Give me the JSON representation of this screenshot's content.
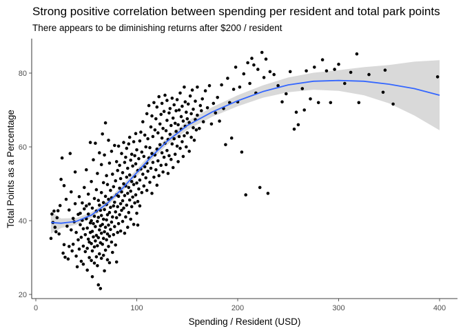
{
  "chart_data": {
    "type": "scatter",
    "title": "Strong positive correlation between spending per resident and total park points",
    "subtitle": "There appears to be diminishing returns after $200 / resident",
    "xlabel": "Spending / Resident (USD)",
    "ylabel": "Total Points as a Percentage",
    "xlim": [
      0,
      415
    ],
    "ylim": [
      19,
      89
    ],
    "x_ticks": [
      0,
      100,
      200,
      300,
      400
    ],
    "y_ticks": [
      20,
      40,
      60,
      80
    ],
    "grid": false,
    "point_color": "#000000",
    "smooth": {
      "method": "loess",
      "color": "#3366FF",
      "band_color": "#d9d9d9",
      "x": [
        15,
        25,
        40,
        55,
        70,
        85,
        100,
        115,
        130,
        150,
        175,
        200,
        225,
        250,
        275,
        300,
        325,
        350,
        375,
        400
      ],
      "y": [
        39.5,
        39.3,
        39.8,
        41.5,
        44.5,
        48.5,
        53.0,
        57.5,
        61.5,
        65.8,
        69.5,
        72.5,
        75.0,
        76.8,
        77.8,
        78.0,
        77.8,
        77.0,
        75.8,
        74.0
      ],
      "lower": [
        36.5,
        38.0,
        38.9,
        40.7,
        43.7,
        47.6,
        52.0,
        56.5,
        60.5,
        64.6,
        68.2,
        71.0,
        73.3,
        74.8,
        75.5,
        75.2,
        74.0,
        71.8,
        68.5,
        64.5
      ],
      "upper": [
        42.5,
        40.6,
        40.7,
        42.3,
        45.3,
        49.4,
        54.0,
        58.5,
        62.5,
        67.0,
        70.8,
        74.0,
        76.7,
        78.8,
        80.1,
        80.8,
        81.6,
        82.2,
        83.1,
        83.5
      ]
    },
    "points": [
      [
        15,
        35.2
      ],
      [
        16,
        41.8
      ],
      [
        17,
        39.5
      ],
      [
        18,
        42.6
      ],
      [
        19,
        38.2
      ],
      [
        20,
        37.0
      ],
      [
        21,
        40.8
      ],
      [
        22,
        42.7
      ],
      [
        23,
        36.4
      ],
      [
        24,
        44.1
      ],
      [
        25,
        51.2
      ],
      [
        26,
        57.0
      ],
      [
        27,
        31.2
      ],
      [
        28,
        33.5
      ],
      [
        28,
        49.5
      ],
      [
        29,
        30.1
      ],
      [
        30,
        45.8
      ],
      [
        31,
        38.5
      ],
      [
        32,
        29.6
      ],
      [
        33,
        33.0
      ],
      [
        33,
        42.9
      ],
      [
        34,
        58.2
      ],
      [
        35,
        37.5
      ],
      [
        35,
        47.8
      ],
      [
        36,
        31.8
      ],
      [
        37,
        33.6
      ],
      [
        37,
        40.6
      ],
      [
        38,
        39.7
      ],
      [
        39,
        44.6
      ],
      [
        39,
        53.2
      ],
      [
        40,
        30.4
      ],
      [
        40,
        36.8
      ],
      [
        41,
        27.5
      ],
      [
        42,
        34.8
      ],
      [
        42,
        41.7
      ],
      [
        43,
        32.3
      ],
      [
        43,
        46.5
      ],
      [
        44,
        38.9
      ],
      [
        44,
        42.0
      ],
      [
        45,
        29.0
      ],
      [
        45,
        35.5
      ],
      [
        46,
        40.1
      ],
      [
        46,
        44.8
      ],
      [
        47,
        28.2
      ],
      [
        47,
        33.1
      ],
      [
        47,
        37.8
      ],
      [
        48,
        43.2
      ],
      [
        48,
        49.0
      ],
      [
        49,
        31.6
      ],
      [
        49,
        36.2
      ],
      [
        50,
        40.5
      ],
      [
        50,
        44.0
      ],
      [
        50,
        53.8
      ],
      [
        51,
        26.6
      ],
      [
        51,
        32.5
      ],
      [
        51,
        38.0
      ],
      [
        52,
        35.0
      ],
      [
        52,
        41.8
      ],
      [
        52,
        47.2
      ],
      [
        53,
        30.0
      ],
      [
        53,
        34.2
      ],
      [
        53,
        44.5
      ],
      [
        54,
        36.8
      ],
      [
        54,
        39.4
      ],
      [
        54,
        61.2
      ],
      [
        55,
        29.2
      ],
      [
        55,
        33.8
      ],
      [
        55,
        40.0
      ],
      [
        55,
        50.6
      ],
      [
        56,
        24.8
      ],
      [
        56,
        31.8
      ],
      [
        56,
        37.1
      ],
      [
        56,
        43.4
      ],
      [
        57,
        35.6
      ],
      [
        57,
        39.2
      ],
      [
        57,
        56.5
      ],
      [
        58,
        28.5
      ],
      [
        58,
        32.9
      ],
      [
        58,
        41.2
      ],
      [
        58,
        46.0
      ],
      [
        59,
        34.5
      ],
      [
        59,
        38.4
      ],
      [
        59,
        61.0
      ],
      [
        60,
        30.2
      ],
      [
        60,
        36.0
      ],
      [
        60,
        42.6
      ],
      [
        60,
        48.4
      ],
      [
        61,
        27.8
      ],
      [
        61,
        33.2
      ],
      [
        61,
        39.8
      ],
      [
        61,
        52.8
      ],
      [
        62,
        22.6
      ],
      [
        62,
        35.4
      ],
      [
        62,
        40.9
      ],
      [
        62,
        45.5
      ],
      [
        63,
        31.0
      ],
      [
        63,
        37.5
      ],
      [
        63,
        44.2
      ],
      [
        63,
        58.4
      ],
      [
        64,
        21.6
      ],
      [
        64,
        34.0
      ],
      [
        64,
        38.6
      ],
      [
        64,
        42.8
      ],
      [
        65,
        29.8
      ],
      [
        65,
        36.6
      ],
      [
        65,
        41.4
      ],
      [
        65,
        47.6
      ],
      [
        65,
        55.2
      ],
      [
        66,
        33.6
      ],
      [
        66,
        39.0
      ],
      [
        66,
        63.5
      ],
      [
        67,
        30.6
      ],
      [
        67,
        35.2
      ],
      [
        67,
        40.4
      ],
      [
        67,
        44.9
      ],
      [
        67,
        50.3
      ],
      [
        68,
        26.4
      ],
      [
        68,
        37.0
      ],
      [
        68,
        43.0
      ],
      [
        68,
        57.8
      ],
      [
        69,
        32.0
      ],
      [
        69,
        38.2
      ],
      [
        69,
        46.6
      ],
      [
        69,
        66.5
      ],
      [
        70,
        34.8
      ],
      [
        70,
        40.2
      ],
      [
        70,
        44.4
      ],
      [
        70,
        52.2
      ],
      [
        71,
        29.4
      ],
      [
        71,
        36.4
      ],
      [
        71,
        41.6
      ],
      [
        71,
        49.8
      ],
      [
        72,
        33.0
      ],
      [
        72,
        38.8
      ],
      [
        72,
        45.8
      ],
      [
        72,
        61.8
      ],
      [
        73,
        28.6
      ],
      [
        73,
        35.8
      ],
      [
        73,
        42.2
      ],
      [
        73,
        55.6
      ],
      [
        74,
        37.6
      ],
      [
        74,
        43.6
      ],
      [
        74,
        48.2
      ],
      [
        75,
        34.2
      ],
      [
        75,
        39.6
      ],
      [
        75,
        46.2
      ],
      [
        75,
        58.8
      ],
      [
        76,
        31.4
      ],
      [
        76,
        41.0
      ],
      [
        76,
        52.6
      ],
      [
        77,
        36.2
      ],
      [
        77,
        44.0
      ],
      [
        77,
        49.2
      ],
      [
        78,
        38.4
      ],
      [
        78,
        45.0
      ],
      [
        78,
        60.4
      ],
      [
        79,
        33.4
      ],
      [
        79,
        42.4
      ],
      [
        79,
        50.8
      ],
      [
        80,
        28.8
      ],
      [
        80,
        40.8
      ],
      [
        80,
        47.0
      ],
      [
        80,
        56.0
      ],
      [
        81,
        36.8
      ],
      [
        81,
        43.8
      ],
      [
        81,
        53.6
      ],
      [
        82,
        39.2
      ],
      [
        82,
        46.6
      ],
      [
        82,
        60.2
      ],
      [
        83,
        41.6
      ],
      [
        83,
        48.8
      ],
      [
        83,
        55.0
      ],
      [
        84,
        37.2
      ],
      [
        84,
        44.6
      ],
      [
        84,
        51.4
      ],
      [
        85,
        42.8
      ],
      [
        85,
        47.8
      ],
      [
        85,
        58.2
      ],
      [
        86,
        39.8
      ],
      [
        86,
        45.4
      ],
      [
        86,
        53.0
      ],
      [
        87,
        43.4
      ],
      [
        87,
        50.0
      ],
      [
        87,
        61.2
      ],
      [
        88,
        36.6
      ],
      [
        88,
        46.8
      ],
      [
        88,
        55.8
      ],
      [
        89,
        41.0
      ],
      [
        89,
        49.4
      ],
      [
        89,
        57.2
      ],
      [
        90,
        44.2
      ],
      [
        90,
        51.8
      ],
      [
        90,
        59.6
      ],
      [
        91,
        38.2
      ],
      [
        91,
        47.4
      ],
      [
        91,
        54.2
      ],
      [
        92,
        42.2
      ],
      [
        92,
        49.0
      ],
      [
        92,
        60.8
      ],
      [
        93,
        45.6
      ],
      [
        93,
        52.4
      ],
      [
        93,
        62.6
      ],
      [
        94,
        40.4
      ],
      [
        94,
        48.0
      ],
      [
        94,
        56.4
      ],
      [
        95,
        43.8
      ],
      [
        95,
        50.6
      ],
      [
        95,
        58.0
      ],
      [
        96,
        46.4
      ],
      [
        96,
        54.8
      ],
      [
        97,
        39.0
      ],
      [
        97,
        49.8
      ],
      [
        97,
        61.4
      ],
      [
        98,
        44.8
      ],
      [
        98,
        52.0
      ],
      [
        98,
        57.6
      ],
      [
        99,
        47.0
      ],
      [
        99,
        55.4
      ],
      [
        99,
        63.6
      ],
      [
        100,
        42.0
      ],
      [
        100,
        50.2
      ],
      [
        100,
        59.2
      ],
      [
        101,
        45.2
      ],
      [
        101,
        53.6
      ],
      [
        101,
        38.8
      ],
      [
        102,
        48.6
      ],
      [
        102,
        56.8
      ],
      [
        103,
        44.0
      ],
      [
        103,
        51.0
      ],
      [
        103,
        61.6
      ],
      [
        104,
        54.0
      ],
      [
        104,
        64.0
      ],
      [
        105,
        47.6
      ],
      [
        105,
        58.6
      ],
      [
        106,
        52.6
      ],
      [
        106,
        66.8
      ],
      [
        107,
        49.4
      ],
      [
        107,
        57.4
      ],
      [
        108,
        54.6
      ],
      [
        108,
        63.2
      ],
      [
        109,
        51.6
      ],
      [
        109,
        60.0
      ],
      [
        110,
        48.2
      ],
      [
        110,
        55.6
      ],
      [
        110,
        69.0
      ],
      [
        111,
        53.4
      ],
      [
        111,
        62.2
      ],
      [
        112,
        57.0
      ],
      [
        112,
        71.2
      ],
      [
        113,
        50.4
      ],
      [
        113,
        59.8
      ],
      [
        114,
        54.2
      ],
      [
        114,
        65.4
      ],
      [
        115,
        47.4
      ],
      [
        115,
        58.2
      ],
      [
        115,
        68.4
      ],
      [
        116,
        55.8
      ],
      [
        116,
        62.8
      ],
      [
        117,
        51.8
      ],
      [
        117,
        72.0
      ],
      [
        118,
        57.8
      ],
      [
        118,
        64.6
      ],
      [
        119,
        53.8
      ],
      [
        119,
        67.6
      ],
      [
        120,
        49.6
      ],
      [
        120,
        59.4
      ],
      [
        120,
        70.8
      ],
      [
        121,
        56.2
      ],
      [
        121,
        63.8
      ],
      [
        122,
        52.2
      ],
      [
        122,
        73.6
      ],
      [
        123,
        60.6
      ],
      [
        123,
        66.2
      ],
      [
        124,
        55.0
      ],
      [
        124,
        68.8
      ],
      [
        125,
        58.4
      ],
      [
        125,
        62.4
      ],
      [
        125,
        71.8
      ],
      [
        126,
        53.2
      ],
      [
        126,
        65.0
      ],
      [
        127,
        57.2
      ],
      [
        127,
        69.6
      ],
      [
        128,
        61.0
      ],
      [
        128,
        74.0
      ],
      [
        129,
        55.2
      ],
      [
        129,
        64.4
      ],
      [
        130,
        59.0
      ],
      [
        130,
        67.2
      ],
      [
        130,
        72.6
      ],
      [
        131,
        52.8
      ],
      [
        131,
        62.0
      ],
      [
        132,
        57.6
      ],
      [
        132,
        69.2
      ],
      [
        133,
        63.4
      ],
      [
        133,
        70.4
      ],
      [
        134,
        56.6
      ],
      [
        134,
        65.8
      ],
      [
        135,
        60.8
      ],
      [
        135,
        73.2
      ],
      [
        136,
        54.4
      ],
      [
        136,
        67.8
      ],
      [
        137,
        62.2
      ],
      [
        137,
        71.4
      ],
      [
        138,
        58.0
      ],
      [
        138,
        66.4
      ],
      [
        139,
        64.2
      ],
      [
        139,
        69.8
      ],
      [
        140,
        60.2
      ],
      [
        140,
        72.8
      ],
      [
        141,
        56.0
      ],
      [
        141,
        66.0
      ],
      [
        142,
        62.8
      ],
      [
        142,
        70.0
      ],
      [
        143,
        59.6
      ],
      [
        143,
        74.6
      ],
      [
        144,
        64.8
      ],
      [
        144,
        68.2
      ],
      [
        145,
        61.4
      ],
      [
        145,
        71.0
      ],
      [
        146,
        57.4
      ],
      [
        146,
        67.0
      ],
      [
        147,
        63.0
      ],
      [
        147,
        76.2
      ],
      [
        148,
        65.6
      ],
      [
        148,
        72.2
      ],
      [
        149,
        60.0
      ],
      [
        149,
        69.4
      ],
      [
        150,
        63.8
      ],
      [
        150,
        67.6
      ],
      [
        151,
        71.6
      ],
      [
        152,
        58.8
      ],
      [
        152,
        66.6
      ],
      [
        153,
        73.8
      ],
      [
        154,
        62.6
      ],
      [
        154,
        69.0
      ],
      [
        155,
        75.4
      ],
      [
        156,
        65.2
      ],
      [
        156,
        70.2
      ],
      [
        157,
        61.8
      ],
      [
        158,
        67.4
      ],
      [
        158,
        72.4
      ],
      [
        159,
        64.6
      ],
      [
        160,
        68.6
      ],
      [
        160,
        76.2
      ],
      [
        162,
        65.0
      ],
      [
        163,
        71.2
      ],
      [
        164,
        69.8
      ],
      [
        165,
        73.0
      ],
      [
        166,
        66.8
      ],
      [
        168,
        75.2
      ],
      [
        170,
        70.6
      ],
      [
        172,
        76.6
      ],
      [
        174,
        66.2
      ],
      [
        176,
        71.8
      ],
      [
        178,
        69.2
      ],
      [
        180,
        73.4
      ],
      [
        182,
        67.0
      ],
      [
        184,
        76.8
      ],
      [
        186,
        70.4
      ],
      [
        188,
        60.6
      ],
      [
        190,
        78.6
      ],
      [
        192,
        72.0
      ],
      [
        194,
        62.4
      ],
      [
        196,
        75.6
      ],
      [
        198,
        81.6
      ],
      [
        200,
        72.2
      ],
      [
        202,
        76.2
      ],
      [
        204,
        58.6
      ],
      [
        206,
        79.8
      ],
      [
        208,
        47.0
      ],
      [
        210,
        82.8
      ],
      [
        212,
        77.2
      ],
      [
        214,
        84.0
      ],
      [
        216,
        82.2
      ],
      [
        218,
        74.6
      ],
      [
        220,
        81.0
      ],
      [
        222,
        49.0
      ],
      [
        224,
        85.6
      ],
      [
        226,
        78.8
      ],
      [
        228,
        83.8
      ],
      [
        230,
        47.4
      ],
      [
        232,
        80.4
      ],
      [
        236,
        79.6
      ],
      [
        240,
        76.6
      ],
      [
        244,
        72.2
      ],
      [
        248,
        74.4
      ],
      [
        252,
        80.4
      ],
      [
        256,
        64.8
      ],
      [
        258,
        69.4
      ],
      [
        260,
        66.0
      ],
      [
        264,
        75.8
      ],
      [
        266,
        70.0
      ],
      [
        268,
        80.6
      ],
      [
        272,
        73.0
      ],
      [
        276,
        81.6
      ],
      [
        280,
        72.0
      ],
      [
        284,
        83.6
      ],
      [
        288,
        80.6
      ],
      [
        292,
        72.0
      ],
      [
        296,
        81.0
      ],
      [
        300,
        82.4
      ],
      [
        306,
        77.2
      ],
      [
        312,
        80.2
      ],
      [
        318,
        85.2
      ],
      [
        320,
        72.0
      ],
      [
        330,
        79.6
      ],
      [
        344,
        74.8
      ],
      [
        346,
        80.8
      ],
      [
        354,
        71.6
      ],
      [
        398,
        79.0
      ]
    ]
  }
}
